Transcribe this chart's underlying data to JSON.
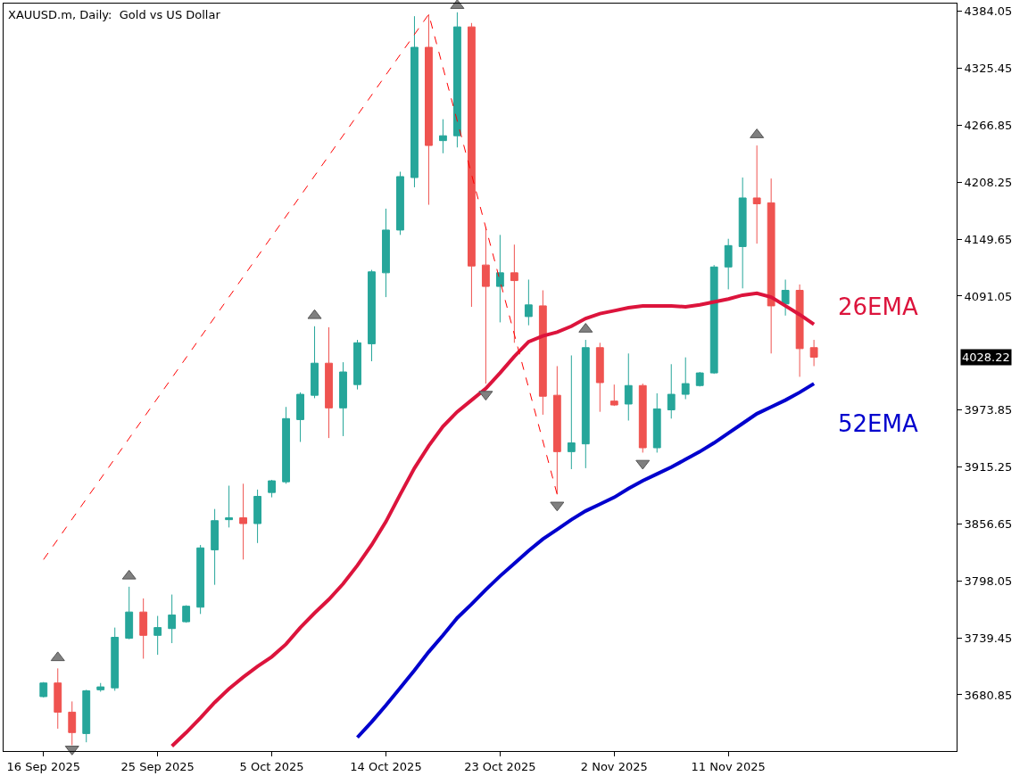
{
  "chart_data": {
    "type": "candlestick",
    "title": "XAUUSD.m, Daily:  Gold vs US Dollar",
    "categories": [
      "16 Sep 2025",
      null,
      null,
      null,
      null,
      null,
      null,
      null,
      "25 Sep 2025",
      null,
      null,
      null,
      null,
      null,
      null,
      null,
      "5 Oct 2025",
      null,
      null,
      null,
      null,
      null,
      null,
      null,
      "14 Oct 2025",
      null,
      null,
      null,
      null,
      null,
      null,
      null,
      "23 Oct 2025",
      null,
      null,
      null,
      null,
      null,
      null,
      null,
      "2 Nov 2025",
      null,
      null,
      null,
      null,
      null,
      null,
      null,
      "11 Nov 2025",
      null,
      null,
      null,
      null,
      null,
      null
    ],
    "ohlc": [
      [
        3679,
        3694,
        3678,
        3693
      ],
      [
        3693,
        3708,
        3646,
        3663
      ],
      [
        3663,
        3674,
        3629,
        3642
      ],
      [
        3641,
        3686,
        3632,
        3685
      ],
      [
        3686,
        3693,
        3684,
        3689
      ],
      [
        3688,
        3750,
        3685,
        3740
      ],
      [
        3739,
        3792,
        3738,
        3766
      ],
      [
        3766,
        3780,
        3718,
        3742
      ],
      [
        3742,
        3762,
        3722,
        3750
      ],
      [
        3749,
        3784,
        3734,
        3763
      ],
      [
        3756,
        3773,
        3755,
        3772
      ],
      [
        3771,
        3835,
        3764,
        3832
      ],
      [
        3830,
        3872,
        3794,
        3860
      ],
      [
        3861,
        3896,
        3853,
        3863
      ],
      [
        3863,
        3898,
        3820,
        3857
      ],
      [
        3857,
        3892,
        3837,
        3885
      ],
      [
        3889,
        3902,
        3884,
        3901
      ],
      [
        3900,
        3977,
        3898,
        3965
      ],
      [
        3964,
        3992,
        3941,
        3990
      ],
      [
        3989,
        4060,
        3986,
        4022
      ],
      [
        4022,
        4059,
        3945,
        3976
      ],
      [
        3976,
        4023,
        3947,
        4013
      ],
      [
        4000,
        4046,
        3995,
        4043
      ],
      [
        4042,
        4118,
        4024,
        4116
      ],
      [
        4115,
        4181,
        4090,
        4159
      ],
      [
        4159,
        4219,
        4154,
        4214
      ],
      [
        4213,
        4379,
        4203,
        4347
      ],
      [
        4347,
        4381,
        4185,
        4246
      ],
      [
        4251,
        4273,
        4238,
        4256
      ],
      [
        4256,
        4383,
        4244,
        4368
      ],
      [
        4368,
        4372,
        4080,
        4122
      ],
      [
        4123,
        4162,
        4001,
        4101
      ],
      [
        4101,
        4154,
        4064,
        4115
      ],
      [
        4115,
        4144,
        4043,
        4107
      ],
      [
        4070,
        4108,
        4061,
        4082
      ],
      [
        4081,
        4097,
        3969,
        3988
      ],
      [
        3989,
        4019,
        3887,
        3931
      ],
      [
        3931,
        4030,
        3913,
        3940
      ],
      [
        3939,
        4046,
        3914,
        4038
      ],
      [
        4038,
        4043,
        3972,
        4002
      ],
      [
        3983,
        4000,
        3978,
        3979
      ],
      [
        3980,
        4032,
        3963,
        3999
      ],
      [
        3999,
        4001,
        3930,
        3935
      ],
      [
        3935,
        3991,
        3930,
        3975
      ],
      [
        3974,
        4021,
        3965,
        3990
      ],
      [
        3990,
        4028,
        3985,
        4001
      ],
      [
        3999,
        4013,
        3998,
        4012
      ],
      [
        4012,
        4123,
        4011,
        4121
      ],
      [
        4121,
        4150,
        4098,
        4143
      ],
      [
        4142,
        4213,
        4099,
        4192
      ],
      [
        4192,
        4246,
        4145,
        4186
      ],
      [
        4187,
        4212,
        4032,
        4081
      ],
      [
        4083,
        4108,
        4071,
        4097
      ],
      [
        4097,
        4103,
        4008,
        4037
      ],
      [
        4038,
        4046,
        4019,
        4028.22
      ]
    ],
    "series": [
      {
        "name": "26EMA",
        "type": "line",
        "color": "#dc143c",
        "values": [
          null,
          null,
          null,
          null,
          null,
          null,
          null,
          null,
          null,
          3628,
          3642,
          3657,
          3673,
          3687,
          3699,
          3710,
          3720,
          3733,
          3750,
          3765,
          3779,
          3795,
          3814,
          3835,
          3859,
          3887,
          3914,
          3937,
          3957,
          3972,
          3984,
          3996,
          4012,
          4029,
          4044,
          4050,
          4054,
          4060,
          4068,
          4073,
          4076,
          4079,
          4081,
          4081,
          4081,
          4080,
          4082,
          4085,
          4088,
          4092,
          4094,
          4090,
          4081,
          4072,
          4062
        ]
      },
      {
        "name": "52EMA",
        "type": "line",
        "color": "#0000cd",
        "values": [
          null,
          null,
          null,
          null,
          null,
          null,
          null,
          null,
          null,
          null,
          null,
          null,
          null,
          null,
          null,
          null,
          null,
          null,
          null,
          null,
          null,
          null,
          3637,
          3653,
          3670,
          3688,
          3706,
          3725,
          3742,
          3760,
          3774,
          3789,
          3803,
          3816,
          3829,
          3841,
          3851,
          3861,
          3870,
          3877,
          3884,
          3893,
          3901,
          3908,
          3915,
          3923,
          3931,
          3940,
          3950,
          3960,
          3970,
          3977,
          3984,
          3992,
          4001
        ]
      },
      {
        "type": "line",
        "line_style": "dashed",
        "color": "#ff0000",
        "values": [
          3820,
          null,
          null,
          null,
          null,
          null,
          null,
          null,
          null,
          null,
          null,
          null,
          null,
          null,
          null,
          null,
          null,
          null,
          null,
          null,
          null,
          null,
          null,
          null,
          null,
          null,
          null,
          4381,
          null,
          null,
          null,
          null,
          null,
          null,
          null,
          null,
          3887,
          null,
          null,
          null,
          null,
          null,
          null,
          null,
          null,
          null,
          null,
          null,
          null,
          null,
          null,
          null,
          null,
          null,
          null
        ]
      },
      {
        "type": "scatter",
        "marker": "triangle",
        "color": "#808080",
        "values": [
          null,
          3719,
          null,
          null,
          null,
          null,
          3803,
          null,
          null,
          null,
          null,
          null,
          null,
          null,
          null,
          null,
          null,
          null,
          null,
          4071,
          null,
          null,
          null,
          null,
          null,
          null,
          null,
          null,
          null,
          4390,
          null,
          null,
          null,
          null,
          null,
          null,
          null,
          null,
          4057,
          null,
          null,
          null,
          null,
          null,
          null,
          null,
          null,
          null,
          null,
          null,
          4257,
          null,
          null,
          null,
          null
        ]
      },
      {
        "type": "scatter",
        "marker": "triangle",
        "color": "#808080",
        "values": [
          null,
          null,
          3625,
          null,
          null,
          null,
          null,
          null,
          null,
          null,
          null,
          null,
          null,
          null,
          null,
          null,
          null,
          null,
          null,
          null,
          null,
          null,
          null,
          null,
          null,
          null,
          null,
          null,
          null,
          null,
          null,
          3990,
          null,
          null,
          null,
          null,
          3876,
          null,
          null,
          null,
          null,
          null,
          3919,
          null,
          null,
          null,
          null,
          null,
          null,
          null,
          null,
          null,
          null,
          null,
          null
        ]
      }
    ],
    "annotations": [
      "4028.22"
    ],
    "ylim": [
      3623,
      4392
    ],
    "yticks": [
      3680.85,
      3739.45,
      3798.05,
      3856.65,
      3915.25,
      3973.85,
      4091.05,
      4149.65,
      4208.25,
      4266.85,
      4325.45,
      4384.05
    ],
    "legend": false
  }
}
